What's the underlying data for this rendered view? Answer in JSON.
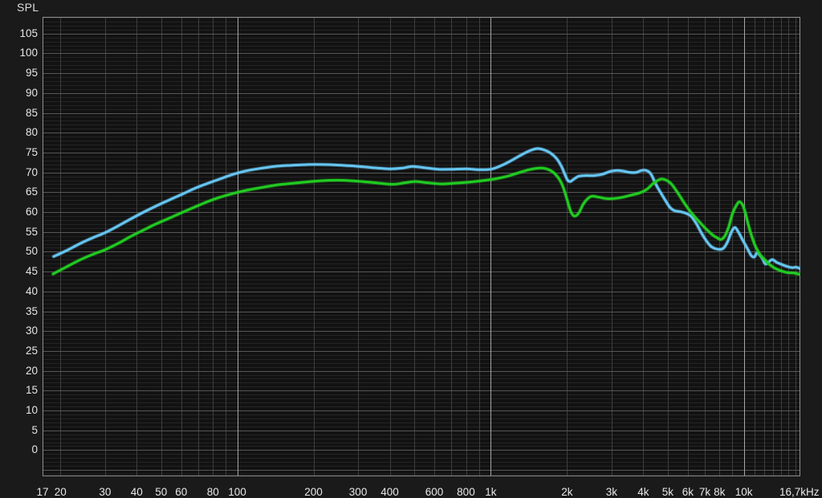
{
  "colors": {
    "page_bg": "#1a1a1a",
    "plot_bg": "#121212",
    "grid_minor_h": "#242424",
    "grid_minor_v": "#3e3e3e",
    "grid_major_h": "#565656",
    "grid_major_v": "#a6a6a6",
    "plot_border": "#8f8f8f",
    "tick_text": "#e6e6e6"
  },
  "chart_data": {
    "type": "line",
    "title": "SPL",
    "legend": "none",
    "grid": "on",
    "x_axis": {
      "scale": "log",
      "unit": "Hz",
      "min_hz": 17,
      "max_hz": 16700,
      "ticks": [
        {
          "label": "17",
          "hz": 17
        },
        {
          "label": "20",
          "hz": 20
        },
        {
          "label": "30",
          "hz": 30
        },
        {
          "label": "40",
          "hz": 40
        },
        {
          "label": "50",
          "hz": 50
        },
        {
          "label": "60",
          "hz": 60
        },
        {
          "label": "80",
          "hz": 80
        },
        {
          "label": "100",
          "hz": 100
        },
        {
          "label": "200",
          "hz": 200
        },
        {
          "label": "300",
          "hz": 300
        },
        {
          "label": "400",
          "hz": 400
        },
        {
          "label": "600",
          "hz": 600
        },
        {
          "label": "800",
          "hz": 800
        },
        {
          "label": "1k",
          "hz": 1000
        },
        {
          "label": "2k",
          "hz": 2000
        },
        {
          "label": "3k",
          "hz": 3000
        },
        {
          "label": "4k",
          "hz": 4000
        },
        {
          "label": "5k",
          "hz": 5000
        },
        {
          "label": "6k",
          "hz": 6000
        },
        {
          "label": "7k",
          "hz": 7000
        },
        {
          "label": "8k",
          "hz": 8000
        },
        {
          "label": "10k",
          "hz": 10000
        },
        {
          "label": "16,7kHz",
          "hz": 16700
        }
      ],
      "minor_gridlines_hz": [
        20,
        30,
        40,
        50,
        60,
        70,
        80,
        90,
        200,
        300,
        400,
        500,
        600,
        700,
        800,
        900,
        2000,
        3000,
        4000,
        5000,
        6000,
        7000,
        8000,
        9000,
        11000,
        12000,
        13000,
        14000,
        15000,
        16000
      ],
      "major_gridlines_hz": [
        100,
        1000,
        10000
      ]
    },
    "y_axis": {
      "label": "SPL",
      "unit": "dB",
      "min": -6.6,
      "max": 109.2,
      "minor_step": 1,
      "major_step": 5,
      "tick_values": [
        105,
        100,
        95,
        90,
        85,
        80,
        75,
        70,
        65,
        60,
        55,
        50,
        45,
        40,
        35,
        30,
        25,
        20,
        15,
        10,
        5,
        0
      ]
    },
    "series": [
      {
        "name": "cyan",
        "color": "#66c6f2",
        "points": [
          [
            18.8,
            48.8
          ],
          [
            21,
            50.2
          ],
          [
            24,
            52.1
          ],
          [
            27,
            53.6
          ],
          [
            30,
            54.8
          ],
          [
            34,
            56.6
          ],
          [
            38,
            58.3
          ],
          [
            43,
            60.1
          ],
          [
            48,
            61.6
          ],
          [
            54,
            63.1
          ],
          [
            60,
            64.4
          ],
          [
            68,
            66.0
          ],
          [
            76,
            67.2
          ],
          [
            85,
            68.3
          ],
          [
            95,
            69.4
          ],
          [
            107,
            70.3
          ],
          [
            120,
            70.9
          ],
          [
            140,
            71.5
          ],
          [
            165,
            71.8
          ],
          [
            200,
            72.0
          ],
          [
            240,
            71.9
          ],
          [
            290,
            71.6
          ],
          [
            340,
            71.2
          ],
          [
            400,
            70.9
          ],
          [
            450,
            71.1
          ],
          [
            490,
            71.5
          ],
          [
            545,
            71.2
          ],
          [
            620,
            70.8
          ],
          [
            700,
            70.8
          ],
          [
            800,
            70.9
          ],
          [
            900,
            70.7
          ],
          [
            1000,
            70.8
          ],
          [
            1100,
            71.7
          ],
          [
            1200,
            72.9
          ],
          [
            1320,
            74.4
          ],
          [
            1430,
            75.5
          ],
          [
            1530,
            76.0
          ],
          [
            1620,
            75.7
          ],
          [
            1720,
            74.9
          ],
          [
            1820,
            73.5
          ],
          [
            1900,
            71.6
          ],
          [
            1960,
            69.6
          ],
          [
            2010,
            68.1
          ],
          [
            2060,
            67.7
          ],
          [
            2130,
            68.3
          ],
          [
            2220,
            69.0
          ],
          [
            2350,
            69.2
          ],
          [
            2550,
            69.2
          ],
          [
            2750,
            69.5
          ],
          [
            2950,
            70.2
          ],
          [
            3150,
            70.5
          ],
          [
            3350,
            70.3
          ],
          [
            3550,
            70.0
          ],
          [
            3750,
            70.0
          ],
          [
            3950,
            70.5
          ],
          [
            4150,
            70.4
          ],
          [
            4300,
            69.5
          ],
          [
            4500,
            66.9
          ],
          [
            4700,
            64.8
          ],
          [
            4900,
            62.9
          ],
          [
            5100,
            61.2
          ],
          [
            5300,
            60.4
          ],
          [
            5600,
            60.1
          ],
          [
            5900,
            59.7
          ],
          [
            6200,
            58.9
          ],
          [
            6500,
            57.0
          ],
          [
            6800,
            54.7
          ],
          [
            7100,
            52.8
          ],
          [
            7400,
            51.4
          ],
          [
            7700,
            50.8
          ],
          [
            8000,
            50.6
          ],
          [
            8300,
            50.9
          ],
          [
            8600,
            52.4
          ],
          [
            8900,
            54.8
          ],
          [
            9200,
            56.1
          ],
          [
            9500,
            55.0
          ],
          [
            9800,
            53.4
          ],
          [
            10100,
            51.9
          ],
          [
            10400,
            50.4
          ],
          [
            10700,
            49.0
          ],
          [
            11000,
            48.7
          ],
          [
            11300,
            49.7
          ],
          [
            11800,
            48.4
          ],
          [
            12200,
            46.9
          ],
          [
            12900,
            48.0
          ],
          [
            13500,
            47.3
          ],
          [
            14100,
            46.8
          ],
          [
            14800,
            46.3
          ],
          [
            15500,
            46.0
          ],
          [
            16100,
            46.1
          ],
          [
            16700,
            45.7
          ]
        ]
      },
      {
        "name": "green",
        "color": "#21cc21",
        "points": [
          [
            18.7,
            44.4
          ],
          [
            21,
            46.1
          ],
          [
            24,
            48.0
          ],
          [
            27,
            49.4
          ],
          [
            30,
            50.5
          ],
          [
            34,
            52.2
          ],
          [
            38,
            53.9
          ],
          [
            43,
            55.6
          ],
          [
            48,
            57.1
          ],
          [
            54,
            58.5
          ],
          [
            60,
            59.8
          ],
          [
            68,
            61.3
          ],
          [
            76,
            62.6
          ],
          [
            85,
            63.7
          ],
          [
            95,
            64.6
          ],
          [
            107,
            65.4
          ],
          [
            120,
            66.0
          ],
          [
            146,
            66.9
          ],
          [
            175,
            67.4
          ],
          [
            215,
            67.9
          ],
          [
            260,
            68.0
          ],
          [
            310,
            67.7
          ],
          [
            360,
            67.3
          ],
          [
            413,
            67.0
          ],
          [
            460,
            67.4
          ],
          [
            505,
            67.7
          ],
          [
            560,
            67.4
          ],
          [
            640,
            67.1
          ],
          [
            730,
            67.3
          ],
          [
            840,
            67.6
          ],
          [
            950,
            68.0
          ],
          [
            1050,
            68.4
          ],
          [
            1160,
            69.0
          ],
          [
            1290,
            69.9
          ],
          [
            1420,
            70.7
          ],
          [
            1560,
            71.1
          ],
          [
            1660,
            70.9
          ],
          [
            1760,
            70.1
          ],
          [
            1860,
            68.4
          ],
          [
            1930,
            66.4
          ],
          [
            2000,
            63.3
          ],
          [
            2070,
            60.2
          ],
          [
            2140,
            59.0
          ],
          [
            2230,
            59.8
          ],
          [
            2330,
            62.2
          ],
          [
            2480,
            63.9
          ],
          [
            2650,
            63.8
          ],
          [
            2850,
            63.4
          ],
          [
            3050,
            63.4
          ],
          [
            3300,
            63.7
          ],
          [
            3600,
            64.3
          ],
          [
            3900,
            64.9
          ],
          [
            4150,
            65.8
          ],
          [
            4400,
            67.3
          ],
          [
            4700,
            68.3
          ],
          [
            4950,
            68.0
          ],
          [
            5200,
            66.9
          ],
          [
            5500,
            64.7
          ],
          [
            5800,
            62.4
          ],
          [
            6100,
            60.4
          ],
          [
            6400,
            58.8
          ],
          [
            6700,
            57.4
          ],
          [
            7100,
            55.7
          ],
          [
            7500,
            54.3
          ],
          [
            7800,
            53.6
          ],
          [
            8100,
            53.1
          ],
          [
            8400,
            53.9
          ],
          [
            8700,
            56.2
          ],
          [
            9000,
            59.5
          ],
          [
            9300,
            61.5
          ],
          [
            9600,
            62.6
          ],
          [
            9900,
            61.7
          ],
          [
            10150,
            59.6
          ],
          [
            10400,
            56.9
          ],
          [
            10700,
            54.2
          ],
          [
            11000,
            52.0
          ],
          [
            11300,
            50.4
          ],
          [
            11700,
            48.9
          ],
          [
            12100,
            48.0
          ],
          [
            12500,
            47.0
          ],
          [
            13000,
            46.2
          ],
          [
            13500,
            45.6
          ],
          [
            14000,
            45.2
          ],
          [
            14700,
            44.8
          ],
          [
            15300,
            44.7
          ],
          [
            15900,
            44.6
          ],
          [
            16300,
            44.4
          ],
          [
            16700,
            44.3
          ]
        ]
      }
    ]
  }
}
